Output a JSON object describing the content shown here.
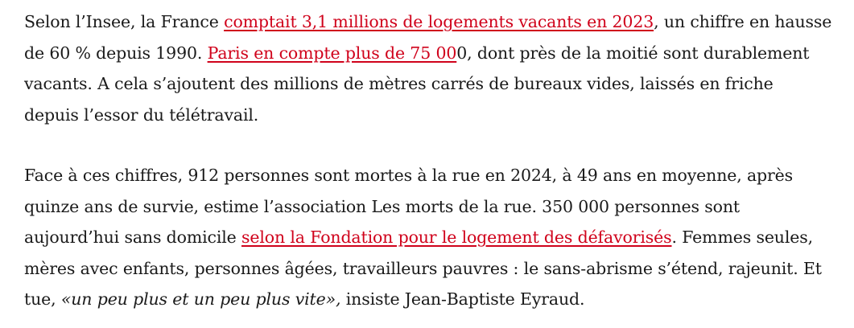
{
  "paragraphs": [
    {
      "lines": [
        {
          "before": "Selon l’Insee, la France ",
          "link": "comptait 3,1 millions de logements vacants en 2023",
          "after": ", un chiffre en hausse"
        },
        {
          "before": "de 60 % depuis 1990. ",
          "link": "Paris en compte plus de 75 00",
          "after": "0, dont près de la moitié sont durablement"
        },
        {
          "text": "vacants. A cela s’ajoutent des millions de mètres carrés de bureaux vides, laissés en friche"
        },
        {
          "text": "depuis l’essor du télétravail."
        }
      ]
    },
    {
      "lines": [
        {
          "text": "Face à ces chiffres, 912 personnes sont mortes à la rue en 2024, à 49 ans en moyenne, après"
        },
        {
          "text": "quinze ans de survie, estime l’association Les morts de la rue. 350 000 personnes sont"
        },
        {
          "before": "aujourd’hui sans domicile ",
          "link": "selon la Fondation pour le logement des défavorisés",
          "after": ". Femmes seules,"
        },
        {
          "text": "mères avec enfants, personnes âgées, travailleurs pauvres : le sans-abrisme s’étend, rajeunit. Et"
        },
        {
          "before": "tue, ",
          "quote": "«un peu plus et un peu plus vite»,",
          "after": " insiste Jean-Baptiste Eyraud."
        }
      ]
    }
  ],
  "colors": {
    "text": "#1a1a1a",
    "link": "#d0021b",
    "background": "#ffffff"
  }
}
